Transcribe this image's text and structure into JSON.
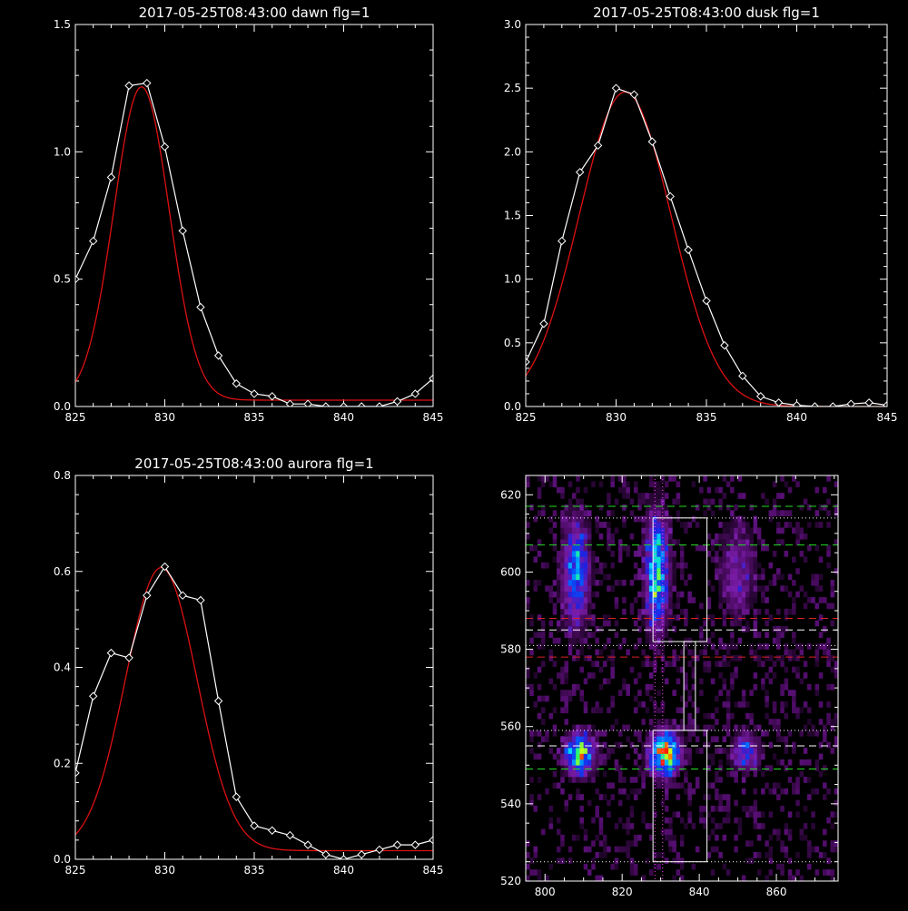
{
  "chart_data": [
    {
      "type": "line",
      "title": "2017-05-25T08:43:00 dawn flg=1",
      "xlabel": "",
      "ylabel": "",
      "xlim": [
        825,
        845
      ],
      "ylim": [
        0,
        1.5
      ],
      "xticks": [
        "825",
        "830",
        "835",
        "840",
        "845"
      ],
      "yticks": [
        "0.0",
        "0.5",
        "1.0",
        "1.5"
      ],
      "xtick_values": [
        825,
        830,
        835,
        840,
        845
      ],
      "ytick_values": [
        0,
        0.5,
        1.0,
        1.5
      ],
      "series": [
        {
          "color": "#ffffff",
          "marker": "diamond",
          "x": [
            825,
            826,
            827,
            828,
            829,
            830,
            831,
            832,
            833,
            834,
            835,
            836,
            837,
            838,
            839,
            840,
            841,
            842,
            843,
            844,
            845
          ],
          "y": [
            0.5,
            0.65,
            0.9,
            1.26,
            1.27,
            1.02,
            0.69,
            0.39,
            0.2,
            0.09,
            0.05,
            0.04,
            0.01,
            0.01,
            0.0,
            0.0,
            0.0,
            0.0,
            0.02,
            0.05,
            0.11
          ]
        },
        {
          "color": "#dd1111",
          "style": "fit",
          "gaussian": {
            "amplitude": 1.23,
            "center": 828.7,
            "sigma": 1.55,
            "baseline": 0.025
          }
        }
      ]
    },
    {
      "type": "line",
      "title": "2017-05-25T08:43:00 dusk flg=1",
      "xlabel": "",
      "ylabel": "",
      "xlim": [
        825,
        845
      ],
      "ylim": [
        0,
        3.0
      ],
      "xticks": [
        "825",
        "830",
        "835",
        "840",
        "845"
      ],
      "yticks": [
        "0.0",
        "0.5",
        "1.0",
        "1.5",
        "2.0",
        "2.5",
        "3.0"
      ],
      "xtick_values": [
        825,
        830,
        835,
        840,
        845
      ],
      "ytick_values": [
        0,
        0.5,
        1.0,
        1.5,
        2.0,
        2.5,
        3.0
      ],
      "series": [
        {
          "color": "#ffffff",
          "marker": "diamond",
          "x": [
            825,
            826,
            827,
            828,
            829,
            830,
            831,
            832,
            833,
            834,
            835,
            836,
            837,
            838,
            839,
            840,
            841,
            842,
            843,
            844,
            845
          ],
          "y": [
            0.35,
            0.65,
            1.3,
            1.84,
            2.05,
            2.5,
            2.45,
            2.08,
            1.65,
            1.23,
            0.83,
            0.48,
            0.24,
            0.08,
            0.03,
            0.01,
            0.0,
            0.0,
            0.02,
            0.03,
            0.01
          ]
        },
        {
          "color": "#dd1111",
          "style": "fit",
          "gaussian": {
            "amplitude": 2.47,
            "center": 830.5,
            "sigma": 2.55,
            "baseline": 0.0
          }
        }
      ]
    },
    {
      "type": "line",
      "title": "2017-05-25T08:43:00 aurora flg=1",
      "xlabel": "",
      "ylabel": "",
      "xlim": [
        825,
        845
      ],
      "ylim": [
        0,
        0.8
      ],
      "xticks": [
        "825",
        "830",
        "835",
        "840",
        "845"
      ],
      "yticks": [
        "0.0",
        "0.2",
        "0.4",
        "0.6",
        "0.8"
      ],
      "xtick_values": [
        825,
        830,
        835,
        840,
        845
      ],
      "ytick_values": [
        0,
        0.2,
        0.4,
        0.6,
        0.8
      ],
      "series": [
        {
          "color": "#ffffff",
          "marker": "diamond",
          "x": [
            825,
            826,
            827,
            828,
            829,
            830,
            831,
            832,
            833,
            834,
            835,
            836,
            837,
            838,
            839,
            840,
            841,
            842,
            843,
            844,
            845
          ],
          "y": [
            0.18,
            0.34,
            0.43,
            0.42,
            0.55,
            0.61,
            0.55,
            0.54,
            0.33,
            0.13,
            0.07,
            0.06,
            0.05,
            0.03,
            0.01,
            0.0,
            0.01,
            0.02,
            0.03,
            0.03,
            0.04
          ]
        },
        {
          "color": "#dd1111",
          "style": "fit",
          "gaussian": {
            "amplitude": 0.59,
            "center": 829.8,
            "sigma": 2.0,
            "baseline": 0.018
          }
        }
      ]
    },
    {
      "type": "heatmap",
      "title": "",
      "xlabel": "",
      "ylabel": "",
      "xlim": [
        795,
        876
      ],
      "ylim": [
        520,
        625
      ],
      "xticks": [
        "800",
        "820",
        "840",
        "860"
      ],
      "yticks": [
        "520",
        "540",
        "560",
        "580",
        "600",
        "620"
      ],
      "xtick_values": [
        800,
        820,
        840,
        860
      ],
      "ytick_values": [
        520,
        540,
        560,
        580,
        600,
        620
      ],
      "colormap": [
        "#000000",
        "#4b0b62",
        "#7a1ca8",
        "#2020e0",
        "#0060ff",
        "#00d0ff",
        "#30ff60",
        "#ffff00",
        "#ff2000"
      ],
      "blobs": [
        {
          "x": 808,
          "y": 600,
          "sx": 2.2,
          "sy": 9.0,
          "intensity": 0.55
        },
        {
          "x": 829,
          "y": 600,
          "sx": 2.0,
          "sy": 9.5,
          "intensity": 0.68
        },
        {
          "x": 850,
          "y": 600,
          "sx": 3.0,
          "sy": 8.0,
          "intensity": 0.25
        },
        {
          "x": 809,
          "y": 553,
          "sx": 2.5,
          "sy": 3.5,
          "intensity": 0.72
        },
        {
          "x": 831,
          "y": 553,
          "sx": 2.5,
          "sy": 3.6,
          "intensity": 0.97
        },
        {
          "x": 852,
          "y": 553,
          "sx": 2.5,
          "sy": 3.0,
          "intensity": 0.4
        }
      ],
      "overlays": {
        "green_dashed_y": [
          617,
          607,
          549
        ],
        "red_dashed_y": [
          588,
          578
        ],
        "white_dashed_y": [
          585,
          555
        ],
        "white_dotted_y": [
          614,
          581,
          559,
          525
        ],
        "magenta_dotted_x": [
          828.5,
          830.5
        ],
        "white_boxes": [
          {
            "x0": 828,
            "x1": 842,
            "y0": 582,
            "y1": 614
          },
          {
            "x0": 836,
            "x1": 839,
            "y0": 559,
            "y1": 582
          },
          {
            "x0": 828,
            "x1": 842,
            "y0": 525,
            "y1": 559
          }
        ]
      }
    }
  ]
}
